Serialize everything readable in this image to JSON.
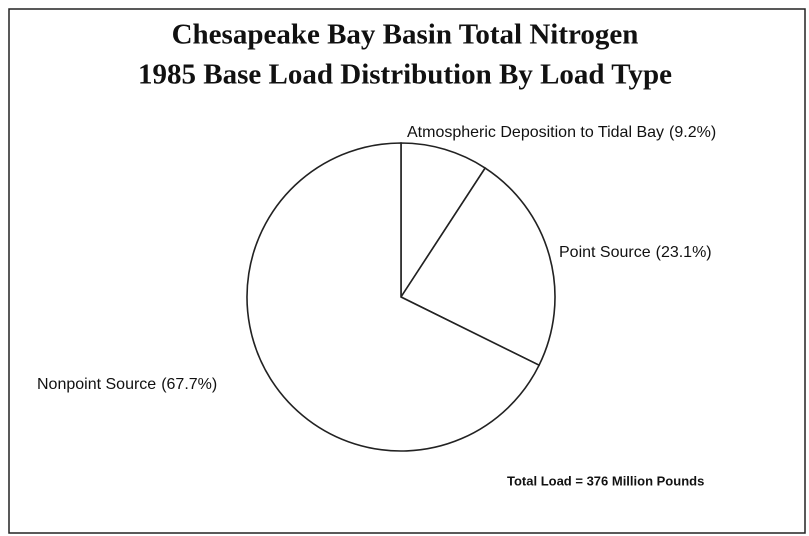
{
  "chart_data": {
    "type": "pie",
    "title": [
      "Chesapeake Bay Basin Total Nitrogen",
      "1985 Base Load Distribution By Load Type"
    ],
    "categories": [
      "Atmospheric Deposition to Tidal Bay",
      "Point Source",
      "Nonpoint Source"
    ],
    "values": [
      9.2,
      23.1,
      67.7
    ],
    "value_labels": [
      "(9.2%)",
      "(23.1%)",
      "(67.7%)"
    ],
    "color": "#ffffff",
    "annotation": "Total Load = 376 Million Pounds"
  }
}
